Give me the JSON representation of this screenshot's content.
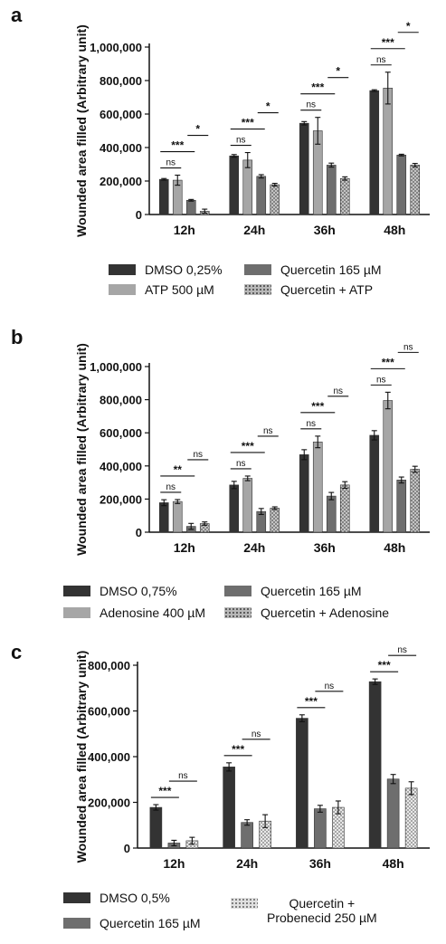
{
  "chart_data": [
    {
      "type": "bar",
      "panel_letter": "a",
      "ylabel": "Wounded area filled (Arbitrary unit)",
      "ylim": [
        0,
        1000000
      ],
      "yticks": [
        0,
        200000,
        400000,
        600000,
        800000,
        1000000
      ],
      "ytick_labels": [
        "0",
        "200,000",
        "400,000",
        "600,000",
        "800,000",
        "1,000,000"
      ],
      "categories": [
        "12h",
        "24h",
        "36h",
        "48h"
      ],
      "series": [
        {
          "name": "DMSO 0,25%",
          "values": [
            210000,
            350000,
            545000,
            740000
          ],
          "errors": [
            5000,
            8000,
            10000,
            5000
          ],
          "fill": "#333333",
          "pattern": "solid"
        },
        {
          "name": "ATP 500 µM",
          "values": [
            205000,
            325000,
            500000,
            755000
          ],
          "errors": [
            30000,
            45000,
            80000,
            95000
          ],
          "fill": "#a6a6a6",
          "pattern": "solid"
        },
        {
          "name": "Quercetin 165 µM",
          "values": [
            85000,
            228000,
            295000,
            355000
          ],
          "errors": [
            5000,
            10000,
            12000,
            5000
          ],
          "fill": "#6e6e6e",
          "pattern": "solid"
        },
        {
          "name": "Quercetin + ATP",
          "values": [
            20000,
            178000,
            215000,
            295000
          ],
          "errors": [
            12000,
            8000,
            10000,
            10000
          ],
          "fill": "#b8b8b8",
          "pattern": "dots"
        }
      ],
      "annotations": [
        [
          {
            "from": 0,
            "to": 1,
            "label": "ns"
          },
          {
            "from": 0,
            "to": 2,
            "label": "***"
          },
          {
            "from": 2,
            "to": 3,
            "label": "*"
          }
        ],
        [
          {
            "from": 0,
            "to": 1,
            "label": "ns"
          },
          {
            "from": 0,
            "to": 2,
            "label": "***"
          },
          {
            "from": 2,
            "to": 3,
            "label": "*"
          }
        ],
        [
          {
            "from": 0,
            "to": 1,
            "label": "ns"
          },
          {
            "from": 0,
            "to": 2,
            "label": "***"
          },
          {
            "from": 2,
            "to": 3,
            "label": "*"
          }
        ],
        [
          {
            "from": 0,
            "to": 1,
            "label": "ns"
          },
          {
            "from": 0,
            "to": 2,
            "label": "***"
          },
          {
            "from": 2,
            "to": 3,
            "label": "*"
          }
        ]
      ]
    },
    {
      "type": "bar",
      "panel_letter": "b",
      "ylabel": "Wounded area filled (Arbitrary unit)",
      "ylim": [
        0,
        1000000
      ],
      "yticks": [
        0,
        200000,
        400000,
        600000,
        800000,
        1000000
      ],
      "ytick_labels": [
        "0",
        "200,000",
        "400,000",
        "600,000",
        "800,000",
        "1,000,000"
      ],
      "categories": [
        "12h",
        "24h",
        "36h",
        "48h"
      ],
      "series": [
        {
          "name": "DMSO 0,75%",
          "values": [
            178000,
            285000,
            468000,
            585000
          ],
          "errors": [
            18000,
            22000,
            30000,
            28000
          ],
          "fill": "#333333",
          "pattern": "solid"
        },
        {
          "name": "Adenosine 400 µM",
          "values": [
            185000,
            325000,
            545000,
            795000
          ],
          "errors": [
            12000,
            14000,
            35000,
            50000
          ],
          "fill": "#a6a6a6",
          "pattern": "solid"
        },
        {
          "name": "Quercetin 165 µM",
          "values": [
            35000,
            125000,
            218000,
            315000
          ],
          "errors": [
            18000,
            18000,
            22000,
            18000
          ],
          "fill": "#6e6e6e",
          "pattern": "solid"
        },
        {
          "name": "Quercetin + Adenosine",
          "values": [
            52000,
            145000,
            285000,
            380000
          ],
          "errors": [
            10000,
            8000,
            20000,
            18000
          ],
          "fill": "#b8b8b8",
          "pattern": "dots"
        }
      ],
      "annotations": [
        [
          {
            "from": 0,
            "to": 1,
            "label": "ns"
          },
          {
            "from": 0,
            "to": 2,
            "label": "**"
          },
          {
            "from": 2,
            "to": 3,
            "label": "ns"
          }
        ],
        [
          {
            "from": 0,
            "to": 1,
            "label": "ns"
          },
          {
            "from": 0,
            "to": 2,
            "label": "***"
          },
          {
            "from": 2,
            "to": 3,
            "label": "ns"
          }
        ],
        [
          {
            "from": 0,
            "to": 1,
            "label": "ns"
          },
          {
            "from": 0,
            "to": 2,
            "label": "***"
          },
          {
            "from": 2,
            "to": 3,
            "label": "ns"
          }
        ],
        [
          {
            "from": 0,
            "to": 1,
            "label": "ns"
          },
          {
            "from": 0,
            "to": 2,
            "label": "***"
          },
          {
            "from": 2,
            "to": 3,
            "label": "ns"
          }
        ]
      ]
    },
    {
      "type": "bar",
      "panel_letter": "c",
      "ylabel": "Wounded area filled (Arbitrary unit)",
      "ylim": [
        0,
        800000
      ],
      "yticks": [
        0,
        200000,
        400000,
        600000,
        800000
      ],
      "ytick_labels": [
        "0",
        "200,000",
        "400,000",
        "600,000",
        "800,000"
      ],
      "categories": [
        "12h",
        "24h",
        "36h",
        "48h"
      ],
      "series": [
        {
          "name": "DMSO 0,5%",
          "values": [
            178000,
            355000,
            568000,
            728000
          ],
          "errors": [
            12000,
            18000,
            15000,
            12000
          ],
          "fill": "#333333",
          "pattern": "solid"
        },
        {
          "name": "Quercetin 165 µM",
          "values": [
            22000,
            112000,
            172000,
            302000
          ],
          "errors": [
            12000,
            12000,
            15000,
            20000
          ],
          "fill": "#6e6e6e",
          "pattern": "solid"
        },
        {
          "name": "Quercetin +\nProbenecid 250 µM",
          "values": [
            32000,
            118000,
            178000,
            262000
          ],
          "errors": [
            15000,
            28000,
            28000,
            28000
          ],
          "fill": "#e0e0e0",
          "pattern": "dots"
        }
      ],
      "annotations": [
        [
          {
            "from": 0,
            "to": 1,
            "label": "***"
          },
          {
            "from": 1,
            "to": 2,
            "label": "ns"
          }
        ],
        [
          {
            "from": 0,
            "to": 1,
            "label": "***"
          },
          {
            "from": 1,
            "to": 2,
            "label": "ns"
          }
        ],
        [
          {
            "from": 0,
            "to": 1,
            "label": "***"
          },
          {
            "from": 1,
            "to": 2,
            "label": "ns"
          }
        ],
        [
          {
            "from": 0,
            "to": 1,
            "label": "***"
          },
          {
            "from": 1,
            "to": 2,
            "label": "ns"
          }
        ]
      ]
    }
  ]
}
